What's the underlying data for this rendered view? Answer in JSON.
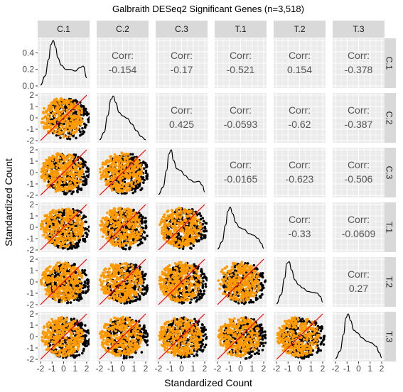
{
  "chart_data": {
    "type": "scatter",
    "subtype": "pairs-matrix",
    "title": "Galbraith DESeq2 Significant Genes (n=3,518)",
    "xlabel": "Standardized Count",
    "ylabel": "Standardized Count",
    "variables": [
      "C.1",
      "C.2",
      "C.3",
      "T.1",
      "T.2",
      "T.3"
    ],
    "xlim": [
      -2,
      2
    ],
    "ylim": [
      -2,
      2
    ],
    "x_ticks": [
      "-2",
      "-1",
      "0",
      "1",
      "2"
    ],
    "y_ticks": [
      "-2",
      "-1",
      "0",
      "1",
      "2"
    ],
    "density_ylim": [
      0,
      0.55
    ],
    "density_ticks": [
      "0.0",
      "0.2",
      "0.4"
    ],
    "corr_label": "Corr:",
    "correlations": [
      {
        "row": "C.1",
        "col": "C.2",
        "value": "-0.154"
      },
      {
        "row": "C.1",
        "col": "C.3",
        "value": "-0.17"
      },
      {
        "row": "C.1",
        "col": "T.1",
        "value": "-0.521"
      },
      {
        "row": "C.1",
        "col": "T.2",
        "value": "0.154"
      },
      {
        "row": "C.1",
        "col": "T.3",
        "value": "-0.378"
      },
      {
        "row": "C.2",
        "col": "C.3",
        "value": "0.425"
      },
      {
        "row": "C.2",
        "col": "T.1",
        "value": "-0.0593"
      },
      {
        "row": "C.2",
        "col": "T.2",
        "value": "-0.62"
      },
      {
        "row": "C.2",
        "col": "T.3",
        "value": "-0.387"
      },
      {
        "row": "C.3",
        "col": "T.1",
        "value": "-0.0165"
      },
      {
        "row": "C.3",
        "col": "T.2",
        "value": "-0.623"
      },
      {
        "row": "C.3",
        "col": "T.3",
        "value": "-0.506"
      },
      {
        "row": "T.1",
        "col": "T.2",
        "value": "-0.33"
      },
      {
        "row": "T.1",
        "col": "T.3",
        "value": "-0.0609"
      },
      {
        "row": "T.2",
        "col": "T.3",
        "value": "0.27"
      }
    ],
    "densities": [
      {
        "variable": "C.1",
        "x": [
          -2,
          -1.6,
          -1.3,
          -1.1,
          -0.9,
          -0.7,
          -0.5,
          -0.2,
          0.2,
          0.6,
          1.0,
          1.4,
          1.7,
          2
        ],
        "y": [
          0.01,
          0.12,
          0.32,
          0.5,
          0.55,
          0.47,
          0.34,
          0.25,
          0.2,
          0.2,
          0.18,
          0.22,
          0.24,
          0.1
        ]
      },
      {
        "variable": "C.2",
        "x": [
          -2,
          -1.6,
          -1.3,
          -1.0,
          -0.8,
          -0.6,
          -0.3,
          0.0,
          0.4,
          0.8,
          1.2,
          1.6,
          2
        ],
        "y": [
          0.01,
          0.1,
          0.3,
          0.5,
          0.54,
          0.46,
          0.34,
          0.3,
          0.27,
          0.2,
          0.12,
          0.05,
          0.01
        ]
      },
      {
        "variable": "C.3",
        "x": [
          -2,
          -1.6,
          -1.3,
          -1.1,
          -0.9,
          -0.7,
          -0.4,
          -0.1,
          0.3,
          0.7,
          1.1,
          1.5,
          1.8,
          2
        ],
        "y": [
          0.01,
          0.1,
          0.3,
          0.5,
          0.55,
          0.42,
          0.32,
          0.3,
          0.24,
          0.19,
          0.16,
          0.17,
          0.12,
          0.04
        ]
      },
      {
        "variable": "T.1",
        "x": [
          -2,
          -1.6,
          -1.3,
          -1.1,
          -0.9,
          -0.7,
          -0.4,
          -0.1,
          0.3,
          0.7,
          1.1,
          1.5,
          1.8,
          2
        ],
        "y": [
          0.01,
          0.1,
          0.3,
          0.47,
          0.52,
          0.44,
          0.33,
          0.27,
          0.25,
          0.2,
          0.18,
          0.14,
          0.08,
          0.02
        ]
      },
      {
        "variable": "T.2",
        "x": [
          -2,
          -1.6,
          -1.3,
          -1.1,
          -0.9,
          -0.7,
          -0.4,
          -0.1,
          0.3,
          0.7,
          1.1,
          1.5,
          1.8,
          2
        ],
        "y": [
          0.01,
          0.12,
          0.32,
          0.5,
          0.52,
          0.42,
          0.3,
          0.24,
          0.2,
          0.16,
          0.15,
          0.14,
          0.1,
          0.03
        ]
      },
      {
        "variable": "T.3",
        "x": [
          -2,
          -1.6,
          -1.3,
          -1.1,
          -0.9,
          -0.7,
          -0.4,
          -0.1,
          0.3,
          0.7,
          1.1,
          1.5,
          1.8,
          2
        ],
        "y": [
          0.01,
          0.1,
          0.3,
          0.5,
          0.55,
          0.47,
          0.35,
          0.32,
          0.26,
          0.22,
          0.2,
          0.16,
          0.08,
          0.02
        ]
      }
    ],
    "reference_line": {
      "slope": 1,
      "intercept": 0
    },
    "colors": {
      "panel_bg": "#ebebeb",
      "grid": "#ffffff",
      "strip_bg": "#d9d9d9",
      "points_back": "#000000",
      "points_front": "#ff9900",
      "reference_line": "#ff0000",
      "density_line": "#000000",
      "corr_text": "#555555",
      "tick_text": "#4d4d4d"
    },
    "grid": true,
    "legend": "none"
  }
}
